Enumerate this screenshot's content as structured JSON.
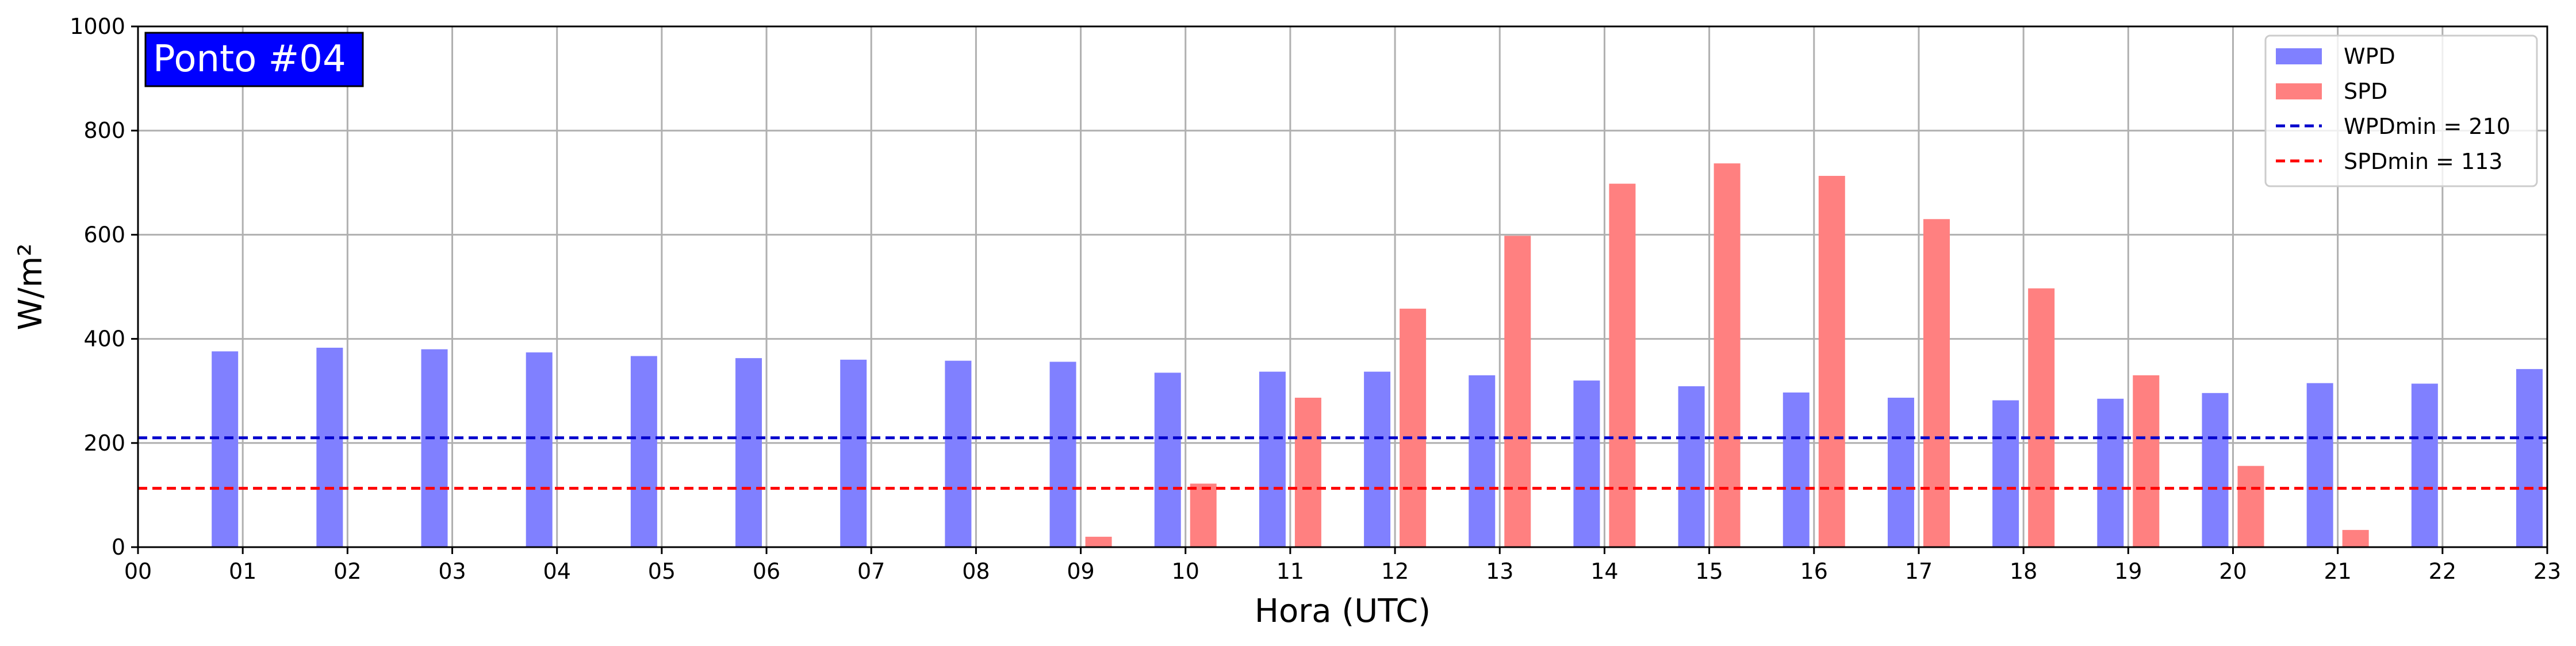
{
  "chart_data": {
    "type": "bar",
    "title": "",
    "badge": "Ponto #04",
    "xlabel": "Hora (UTC)",
    "ylabel": "W/m²",
    "ylim": [
      0,
      1000
    ],
    "yticks": [
      "0",
      "200",
      "400",
      "600",
      "800",
      "1000"
    ],
    "xticks": [
      "00",
      "01",
      "02",
      "03",
      "04",
      "05",
      "06",
      "07",
      "08",
      "09",
      "10",
      "11",
      "12",
      "13",
      "14",
      "15",
      "16",
      "17",
      "18",
      "19",
      "20",
      "21",
      "22",
      "23"
    ],
    "grid": true,
    "legend_position": "top-right",
    "series": [
      {
        "name": "WPD",
        "color": "#8080ff",
        "hours": [
          1,
          2,
          3,
          4,
          5,
          6,
          7,
          8,
          9,
          10,
          11,
          12,
          13,
          14,
          15,
          16,
          17,
          18,
          19,
          20,
          21,
          22,
          23
        ],
        "values": [
          376,
          383,
          380,
          374,
          367,
          363,
          360,
          358,
          356,
          335,
          337,
          337,
          330,
          320,
          309,
          297,
          287,
          282,
          285,
          296,
          315,
          314,
          342
        ]
      },
      {
        "name": "SPD",
        "color": "#ff8080",
        "hours": [
          1,
          2,
          3,
          4,
          5,
          6,
          7,
          8,
          9,
          10,
          11,
          12,
          13,
          14,
          15,
          16,
          17,
          18,
          19,
          20,
          21,
          22,
          23
        ],
        "values": [
          0,
          0,
          0,
          0,
          0,
          0,
          0,
          0,
          20,
          122,
          287,
          458,
          598,
          698,
          737,
          713,
          630,
          497,
          330,
          156,
          33,
          0,
          0
        ]
      }
    ],
    "reference_lines": [
      {
        "name": "WPDmin = 210",
        "value": 210,
        "color": "#0000cc"
      },
      {
        "name": "SPDmin = 113",
        "value": 113,
        "color": "#ff0000"
      }
    ]
  }
}
